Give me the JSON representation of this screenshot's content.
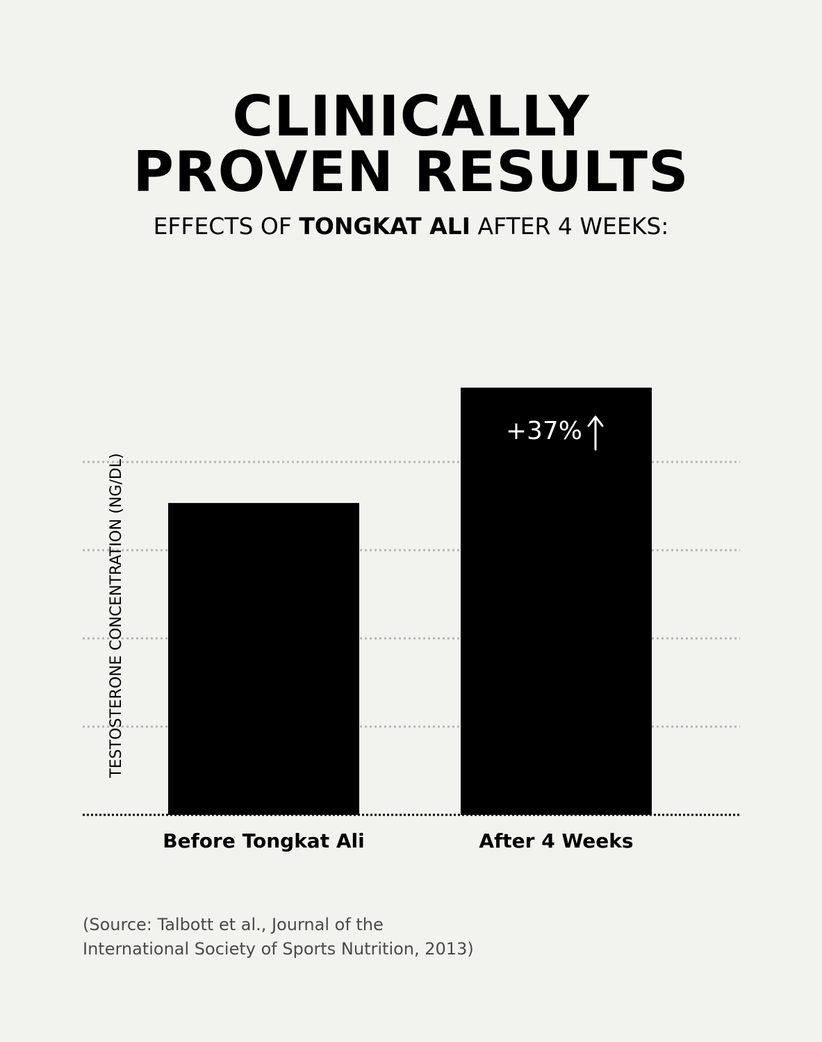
{
  "header": {
    "title_line1": "CLINICALLY",
    "title_line2": "PROVEN RESULTS",
    "subtitle_pre": "EFFECTS OF ",
    "subtitle_bold": "TONGKAT ALI",
    "subtitle_post": " AFTER 4 WEEKS:"
  },
  "chart_data": {
    "type": "bar",
    "categories": [
      "Before Tongkat Ali",
      "After 4 Weeks"
    ],
    "values": [
      1.0,
      1.37
    ],
    "ylabel": "TESTOSTERONE CONCENTRATION (NG/DL)",
    "ylim": [
      0,
      1.37
    ],
    "grid": true,
    "annotation": "+37%",
    "annotation_icon": "up-arrow-icon",
    "colors": {
      "bar": "#000000",
      "grid": "#b5b5b5",
      "baseline": "#000000",
      "annotation": "#ffffff"
    }
  },
  "footer": {
    "source_line1": "(Source: Talbott et al., Journal of the",
    "source_line2": "International Society of Sports Nutrition, 2013)"
  }
}
